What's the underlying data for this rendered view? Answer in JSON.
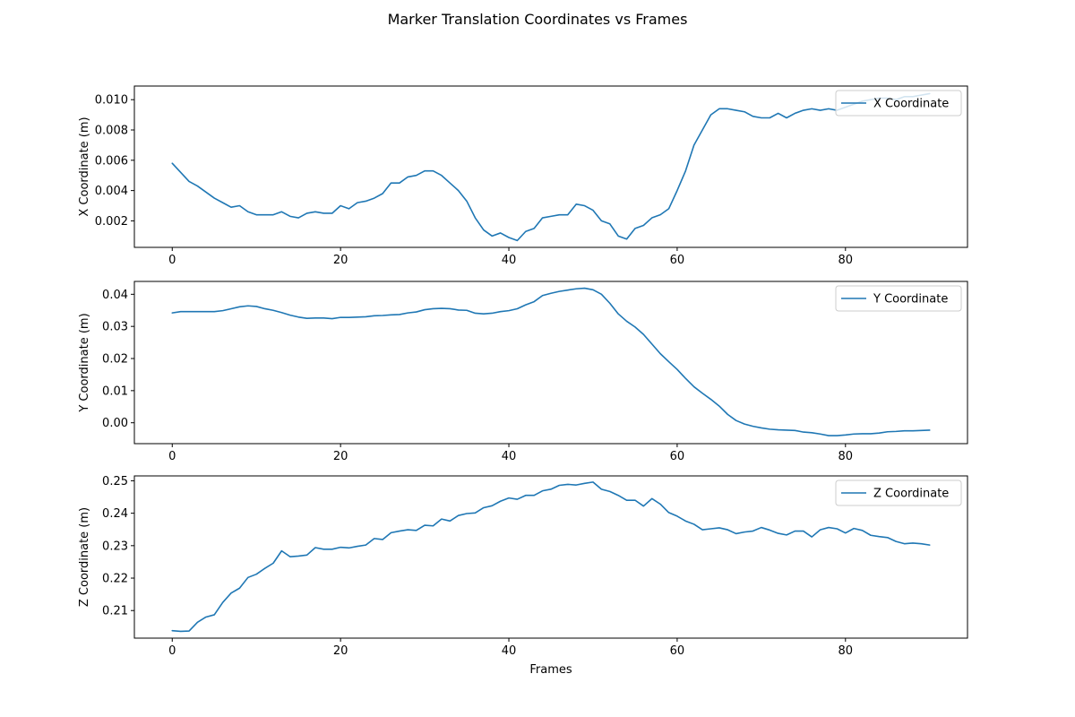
{
  "title": "Marker Translation Coordinates vs Frames",
  "colors": {
    "series": "#1f77b4",
    "axis": "#000000",
    "legend_border": "#cccccc"
  },
  "chart_data": [
    {
      "type": "line",
      "xlabel": "",
      "ylabel": "X Coordinate (m)",
      "xlim": [
        -4.5,
        94.5
      ],
      "ylim": [
        0.00025,
        0.0109
      ],
      "xticks": [
        0,
        20,
        40,
        60,
        80
      ],
      "yticks": [
        0.002,
        0.004,
        0.006,
        0.008,
        0.01
      ],
      "ytick_labels": [
        "0.002",
        "0.004",
        "0.006",
        "0.008",
        "0.010"
      ],
      "grid": false,
      "legend_position": "upper right",
      "series": [
        {
          "name": "X Coordinate",
          "x": [
            0,
            1,
            2,
            3,
            4,
            5,
            6,
            7,
            8,
            9,
            10,
            11,
            12,
            13,
            14,
            15,
            16,
            17,
            18,
            19,
            20,
            21,
            22,
            23,
            24,
            25,
            26,
            27,
            28,
            29,
            30,
            31,
            32,
            33,
            34,
            35,
            36,
            37,
            38,
            39,
            40,
            41,
            42,
            43,
            44,
            45,
            46,
            47,
            48,
            49,
            50,
            51,
            52,
            53,
            54,
            55,
            56,
            57,
            58,
            59,
            60,
            61,
            62,
            63,
            64,
            65,
            66,
            67,
            68,
            69,
            70,
            71,
            72,
            73,
            74,
            75,
            76,
            77,
            78,
            79,
            80,
            81,
            82,
            83,
            84,
            85,
            86,
            87,
            88,
            89,
            90
          ],
          "y": [
            0.0058,
            0.0052,
            0.0046,
            0.0043,
            0.0039,
            0.0035,
            0.0032,
            0.0029,
            0.003,
            0.0026,
            0.0024,
            0.0024,
            0.0024,
            0.0026,
            0.0023,
            0.0022,
            0.0025,
            0.0026,
            0.0025,
            0.0025,
            0.003,
            0.0028,
            0.0032,
            0.0033,
            0.0035,
            0.0038,
            0.0045,
            0.0045,
            0.0049,
            0.005,
            0.0053,
            0.0053,
            0.005,
            0.0045,
            0.004,
            0.0033,
            0.0022,
            0.0014,
            0.001,
            0.0012,
            0.0009,
            0.0007,
            0.0013,
            0.0015,
            0.0022,
            0.0023,
            0.0024,
            0.0024,
            0.0031,
            0.003,
            0.0027,
            0.002,
            0.0018,
            0.001,
            0.0008,
            0.0015,
            0.0017,
            0.0022,
            0.0024,
            0.0028,
            0.004,
            0.0053,
            0.007,
            0.008,
            0.009,
            0.0094,
            0.0094,
            0.0093,
            0.0092,
            0.0089,
            0.0088,
            0.0088,
            0.0091,
            0.0088,
            0.0091,
            0.0093,
            0.0094,
            0.0093,
            0.0094,
            0.0093,
            0.0095,
            0.0097,
            0.0099,
            0.01,
            0.0101,
            0.0101,
            0.01,
            0.0102,
            0.0102,
            0.0103,
            0.0104
          ]
        }
      ]
    },
    {
      "type": "line",
      "xlabel": "",
      "ylabel": "Y Coordinate (m)",
      "xlim": [
        -4.5,
        94.5
      ],
      "ylim": [
        -0.0065,
        0.044
      ],
      "xticks": [
        0,
        20,
        40,
        60,
        80
      ],
      "yticks": [
        0.0,
        0.01,
        0.02,
        0.03,
        0.04
      ],
      "ytick_labels": [
        "0.00",
        "0.01",
        "0.02",
        "0.03",
        "0.04"
      ],
      "grid": false,
      "legend_position": "upper right",
      "series": [
        {
          "name": "Y Coordinate",
          "x": [
            0,
            1,
            2,
            3,
            4,
            5,
            6,
            7,
            8,
            9,
            10,
            11,
            12,
            13,
            14,
            15,
            16,
            17,
            18,
            19,
            20,
            21,
            22,
            23,
            24,
            25,
            26,
            27,
            28,
            29,
            30,
            31,
            32,
            33,
            34,
            35,
            36,
            37,
            38,
            39,
            40,
            41,
            42,
            43,
            44,
            45,
            46,
            47,
            48,
            49,
            50,
            51,
            52,
            53,
            54,
            55,
            56,
            57,
            58,
            59,
            60,
            61,
            62,
            63,
            64,
            65,
            66,
            67,
            68,
            69,
            70,
            71,
            72,
            73,
            74,
            75,
            76,
            77,
            78,
            79,
            80,
            81,
            82,
            83,
            84,
            85,
            86,
            87,
            88,
            89,
            90
          ],
          "y": [
            0.0342,
            0.0346,
            0.0346,
            0.0346,
            0.0346,
            0.0346,
            0.0349,
            0.0355,
            0.0361,
            0.0364,
            0.0362,
            0.0355,
            0.035,
            0.0343,
            0.0335,
            0.0329,
            0.0325,
            0.0326,
            0.0326,
            0.0324,
            0.0328,
            0.0328,
            0.0329,
            0.033,
            0.0333,
            0.0334,
            0.0336,
            0.0337,
            0.0342,
            0.0345,
            0.0352,
            0.0355,
            0.0356,
            0.0355,
            0.0351,
            0.035,
            0.0341,
            0.0339,
            0.0341,
            0.0346,
            0.0349,
            0.0355,
            0.0367,
            0.0377,
            0.0396,
            0.0403,
            0.0409,
            0.0413,
            0.0417,
            0.0419,
            0.0414,
            0.04,
            0.0372,
            0.0339,
            0.0316,
            0.0298,
            0.0275,
            0.0245,
            0.0215,
            0.019,
            0.0166,
            0.0138,
            0.0112,
            0.0092,
            0.0073,
            0.0052,
            0.0026,
            0.0007,
            -0.0004,
            -0.0011,
            -0.0016,
            -0.002,
            -0.0022,
            -0.0023,
            -0.0024,
            -0.0029,
            -0.0031,
            -0.0035,
            -0.004,
            -0.004,
            -0.0038,
            -0.0035,
            -0.0034,
            -0.0034,
            -0.0032,
            -0.0028,
            -0.0027,
            -0.0025,
            -0.0025,
            -0.0024,
            -0.0023
          ]
        }
      ]
    },
    {
      "type": "line",
      "xlabel": "Frames",
      "ylabel": "Z Coordinate (m)",
      "xlim": [
        -4.5,
        94.5
      ],
      "ylim": [
        0.2015,
        0.2515
      ],
      "xticks": [
        0,
        20,
        40,
        60,
        80
      ],
      "yticks": [
        0.21,
        0.22,
        0.23,
        0.24,
        0.25
      ],
      "ytick_labels": [
        "0.21",
        "0.22",
        "0.23",
        "0.24",
        "0.25"
      ],
      "grid": false,
      "legend_position": "upper right",
      "series": [
        {
          "name": "Z Coordinate",
          "x": [
            0,
            1,
            2,
            3,
            4,
            5,
            6,
            7,
            8,
            9,
            10,
            11,
            12,
            13,
            14,
            15,
            16,
            17,
            18,
            19,
            20,
            21,
            22,
            23,
            24,
            25,
            26,
            27,
            28,
            29,
            30,
            31,
            32,
            33,
            34,
            35,
            36,
            37,
            38,
            39,
            40,
            41,
            42,
            43,
            44,
            45,
            46,
            47,
            48,
            49,
            50,
            51,
            52,
            53,
            54,
            55,
            56,
            57,
            58,
            59,
            60,
            61,
            62,
            63,
            64,
            65,
            66,
            67,
            68,
            69,
            70,
            71,
            72,
            73,
            74,
            75,
            76,
            77,
            78,
            79,
            80,
            81,
            82,
            83,
            84,
            85,
            86,
            87,
            88,
            89,
            90
          ],
          "y": [
            0.2038,
            0.2036,
            0.2037,
            0.2064,
            0.208,
            0.2087,
            0.2125,
            0.2154,
            0.2169,
            0.2202,
            0.2212,
            0.223,
            0.2246,
            0.2284,
            0.2266,
            0.2268,
            0.2271,
            0.2294,
            0.2289,
            0.2289,
            0.2295,
            0.2293,
            0.2298,
            0.2302,
            0.2322,
            0.2319,
            0.234,
            0.2345,
            0.2349,
            0.2347,
            0.2363,
            0.2361,
            0.2382,
            0.2376,
            0.2393,
            0.2399,
            0.2401,
            0.2417,
            0.2423,
            0.2437,
            0.2447,
            0.2443,
            0.2455,
            0.2455,
            0.2469,
            0.2474,
            0.2486,
            0.2489,
            0.2487,
            0.2492,
            0.2496,
            0.2474,
            0.2467,
            0.2455,
            0.244,
            0.244,
            0.2422,
            0.2445,
            0.2428,
            0.2402,
            0.2391,
            0.2376,
            0.2366,
            0.2349,
            0.2352,
            0.2355,
            0.2349,
            0.2337,
            0.2342,
            0.2345,
            0.2356,
            0.2348,
            0.2338,
            0.2333,
            0.2345,
            0.2345,
            0.2327,
            0.2349,
            0.2356,
            0.2352,
            0.2339,
            0.2353,
            0.2347,
            0.2332,
            0.2328,
            0.2325,
            0.2313,
            0.2306,
            0.2308,
            0.2306,
            0.2302
          ]
        }
      ]
    }
  ]
}
